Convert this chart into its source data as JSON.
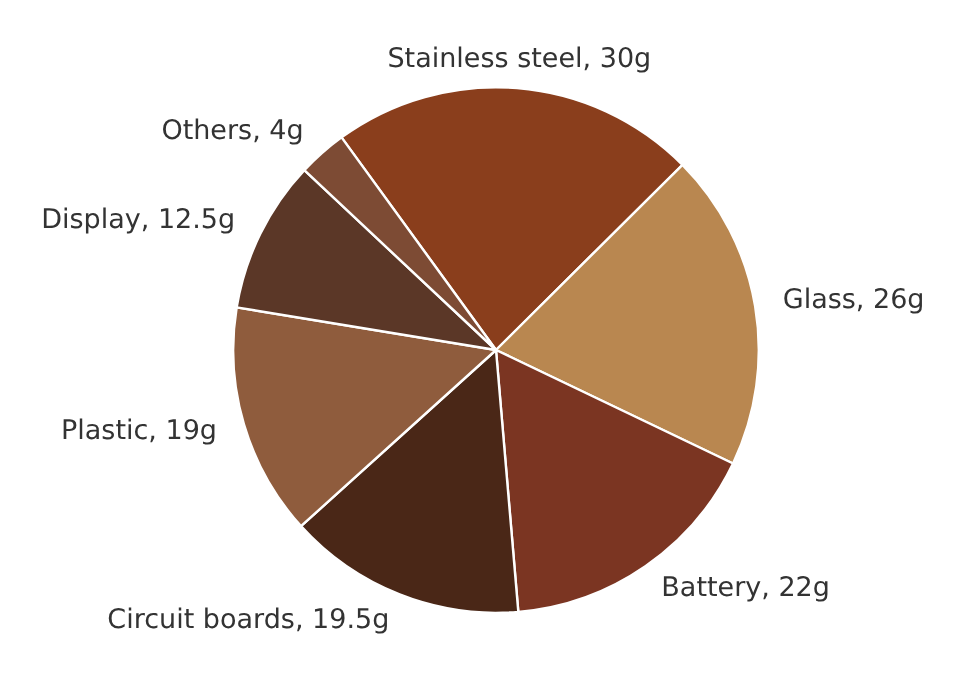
{
  "chart_data": {
    "type": "pie",
    "categories": [
      "Stainless steel",
      "Glass",
      "Battery",
      "Circuit boards",
      "Plastic",
      "Display",
      "Others"
    ],
    "values": [
      30,
      26,
      22,
      19.5,
      19,
      12.5,
      4
    ],
    "value_labels": [
      "30g",
      "26g",
      "22g",
      "19.5g",
      "19g",
      "12.5g",
      "4g"
    ],
    "colors": [
      "#8a3e1c",
      "#b98750",
      "#7b3522",
      "#4a2717",
      "#8f5c3d",
      "#5b3727",
      "#7d4b34"
    ],
    "legend": false
  }
}
